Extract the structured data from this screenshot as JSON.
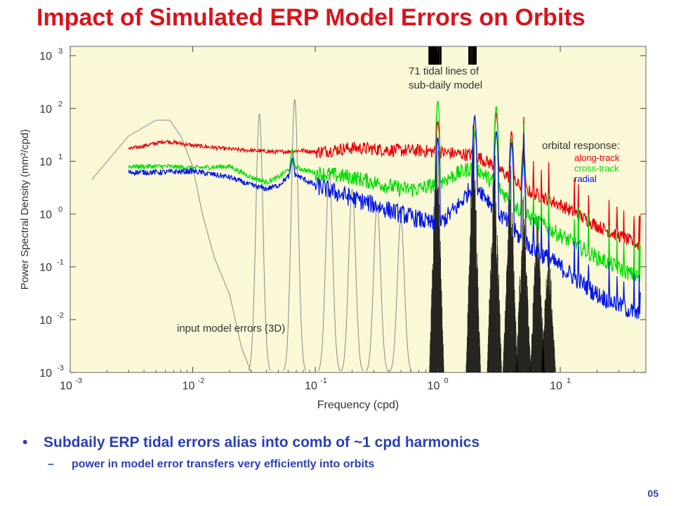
{
  "slide": {
    "title": "Impact of Simulated ERP Model Errors on Orbits",
    "bullet_1": "Subdaily ERP tidal errors alias into comb of ~1 cpd harmonics",
    "bullet_2": "power in model error transfers very efficiently into orbits",
    "page_number": "05",
    "bullet_marker": "•",
    "sub_bullet_marker": "–"
  },
  "chart_data": {
    "type": "line",
    "xscale": "log",
    "yscale": "log",
    "xlim": [
      0.001,
      50
    ],
    "ylim": [
      0.001,
      1500
    ],
    "xlabel": "Frequency (cpd)",
    "ylabel": "Power Spectral Density  (mm²/cpd)",
    "x_ticks": [
      {
        "value": 0.001,
        "base": "10",
        "exp": "-3"
      },
      {
        "value": 0.01,
        "base": "10",
        "exp": "-2"
      },
      {
        "value": 0.1,
        "base": "10",
        "exp": "-1"
      },
      {
        "value": 1,
        "base": "10",
        "exp": "0"
      },
      {
        "value": 10,
        "base": "10",
        "exp": "1"
      }
    ],
    "y_ticks": [
      {
        "value": 0.001,
        "base": "10",
        "exp": "-3"
      },
      {
        "value": 0.01,
        "base": "10",
        "exp": "-2"
      },
      {
        "value": 0.1,
        "base": "10",
        "exp": "-1"
      },
      {
        "value": 1,
        "base": "10",
        "exp": "0"
      },
      {
        "value": 10,
        "base": "10",
        "exp": "1"
      },
      {
        "value": 100,
        "base": "10",
        "exp": "2"
      },
      {
        "value": 1000,
        "base": "10",
        "exp": "3"
      }
    ],
    "background": "#fbf8d8",
    "legend": {
      "position": "right",
      "title": "orbital response:",
      "entries": [
        {
          "label": "along-track",
          "color": "#e8000a"
        },
        {
          "label": "cross-track",
          "color": "#00dd00"
        },
        {
          "label": "radial",
          "color": "#0015e8"
        }
      ]
    },
    "annotations": {
      "tidal_lines": "71 tidal lines of\nsub-daily model",
      "input_errors": "input model errors (3D)"
    },
    "tidal_line_marks_cpd": [
      0.85,
      0.87,
      0.89,
      0.91,
      0.93,
      0.95,
      0.97,
      0.99,
      1.01,
      1.03,
      1.06,
      1.8,
      1.85,
      1.9,
      1.95,
      2.0,
      2.05
    ],
    "series": [
      {
        "name": "along-track",
        "color": "#e8000a",
        "points": [
          [
            0.003,
            17
          ],
          [
            0.006,
            24
          ],
          [
            0.01,
            20
          ],
          [
            0.02,
            17
          ],
          [
            0.03,
            16
          ],
          [
            0.05,
            15
          ],
          [
            0.08,
            16
          ],
          [
            0.1,
            15
          ],
          [
            0.2,
            18
          ],
          [
            0.3,
            17
          ],
          [
            0.5,
            16
          ],
          [
            0.7,
            16
          ],
          [
            1,
            15
          ],
          [
            2,
            13
          ],
          [
            3,
            8
          ],
          [
            5,
            3
          ],
          [
            10,
            1.5
          ],
          [
            20,
            0.6
          ],
          [
            45,
            0.25
          ]
        ],
        "noise": 0.25,
        "peaks": [
          [
            0.065,
            12
          ],
          [
            1.0,
            60
          ],
          [
            2.0,
            35
          ],
          [
            3.0,
            90
          ],
          [
            4.0,
            40
          ],
          [
            5.0,
            20
          ]
        ]
      },
      {
        "name": "cross-track",
        "color": "#00dd00",
        "points": [
          [
            0.003,
            8
          ],
          [
            0.006,
            8
          ],
          [
            0.01,
            7.5
          ],
          [
            0.02,
            8
          ],
          [
            0.03,
            5
          ],
          [
            0.04,
            4
          ],
          [
            0.05,
            5
          ],
          [
            0.065,
            8
          ],
          [
            0.1,
            6
          ],
          [
            0.2,
            5
          ],
          [
            0.3,
            4
          ],
          [
            0.5,
            3
          ],
          [
            0.7,
            3
          ],
          [
            0.9,
            3.5
          ],
          [
            1.5,
            6
          ],
          [
            2,
            8
          ],
          [
            3,
            3.5
          ],
          [
            5,
            1
          ],
          [
            10,
            0.4
          ],
          [
            20,
            0.15
          ],
          [
            45,
            0.06
          ]
        ],
        "noise": 0.3,
        "peaks": [
          [
            0.065,
            18
          ],
          [
            1.0,
            150
          ],
          [
            2.0,
            40
          ],
          [
            3.0,
            120
          ],
          [
            4.0,
            30
          ],
          [
            5.0,
            15
          ]
        ]
      },
      {
        "name": "radial",
        "color": "#0015e8",
        "points": [
          [
            0.003,
            6.2
          ],
          [
            0.006,
            6.2
          ],
          [
            0.01,
            6.5
          ],
          [
            0.02,
            5
          ],
          [
            0.03,
            3.5
          ],
          [
            0.04,
            3
          ],
          [
            0.05,
            3.5
          ],
          [
            0.065,
            6
          ],
          [
            0.1,
            3.5
          ],
          [
            0.2,
            2
          ],
          [
            0.3,
            1.5
          ],
          [
            0.5,
            1
          ],
          [
            0.7,
            0.8
          ],
          [
            1,
            0.6
          ],
          [
            1.5,
            1.5
          ],
          [
            2,
            4
          ],
          [
            3,
            1.2
          ],
          [
            5,
            0.3
          ],
          [
            10,
            0.1
          ],
          [
            20,
            0.03
          ],
          [
            45,
            0.012
          ]
        ],
        "noise": 0.35,
        "peaks": [
          [
            0.065,
            12
          ],
          [
            1.0,
            30
          ],
          [
            2.0,
            80
          ],
          [
            3.0,
            40
          ],
          [
            4.0,
            25
          ],
          [
            5.0,
            10
          ]
        ]
      },
      {
        "name": "input model errors (3D)",
        "color": "#888888",
        "points": [
          [
            0.0015,
            4.5
          ],
          [
            0.003,
            30
          ],
          [
            0.005,
            60
          ],
          [
            0.0065,
            60
          ],
          [
            0.008,
            30
          ],
          [
            0.01,
            8
          ],
          [
            0.012,
            1
          ],
          [
            0.015,
            0.15
          ],
          [
            0.02,
            0.03
          ],
          [
            0.025,
            0.003
          ],
          [
            0.03,
            0.001
          ]
        ],
        "lobes": [
          [
            0.035,
            80
          ],
          [
            0.068,
            150
          ],
          [
            0.13,
            6
          ],
          [
            0.2,
            3
          ],
          [
            0.32,
            1.5
          ],
          [
            0.5,
            0.8
          ]
        ]
      },
      {
        "name": "tidal comb",
        "color": "#000000",
        "lobes": [
          [
            0.98,
            200
          ],
          [
            1.95,
            180
          ],
          [
            2.9,
            60
          ],
          [
            3.9,
            20
          ],
          [
            5.0,
            6
          ],
          [
            6.5,
            2
          ],
          [
            8,
            0.6
          ]
        ]
      }
    ]
  }
}
